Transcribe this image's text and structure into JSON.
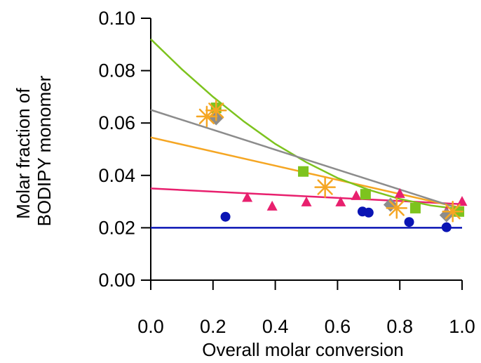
{
  "chart_data": {
    "type": "scatter",
    "title": "",
    "xlabel": "Overall molar conversion",
    "ylabel_lines": [
      "Molar fraction of",
      "BODIPY monomer"
    ],
    "xlim": [
      0.0,
      1.0
    ],
    "ylim": [
      0.0,
      0.1
    ],
    "x_ticks": [
      "0.0",
      "0.2",
      "0.4",
      "0.6",
      "0.8",
      "1.0"
    ],
    "y_ticks": [
      "0.00",
      "0.02",
      "0.04",
      "0.06",
      "0.08",
      "0.10"
    ],
    "grid": false,
    "legend": "none",
    "series": [
      {
        "color": "#0a14b4",
        "marker": "circle",
        "points": [
          [
            0.24,
            0.0242
          ],
          [
            0.68,
            0.0262
          ],
          [
            0.7,
            0.0258
          ],
          [
            0.83,
            0.0222
          ],
          [
            0.95,
            0.0202
          ]
        ],
        "fit": [
          [
            0.0,
            0.02
          ],
          [
            0.5,
            0.02
          ],
          [
            1.0,
            0.02
          ]
        ]
      },
      {
        "color": "#e8206e",
        "marker": "triangle",
        "points": [
          [
            0.31,
            0.0315
          ],
          [
            0.39,
            0.0282
          ],
          [
            0.5,
            0.0298
          ],
          [
            0.61,
            0.0298
          ],
          [
            0.66,
            0.0322
          ],
          [
            0.8,
            0.033
          ],
          [
            0.95,
            0.0262
          ],
          [
            1.0,
            0.03
          ]
        ],
        "fit": [
          [
            0.0,
            0.035
          ],
          [
            0.5,
            0.032
          ],
          [
            1.0,
            0.029
          ]
        ]
      },
      {
        "color": "#f5a623",
        "marker": "asterisk",
        "points": [
          [
            0.18,
            0.0625
          ],
          [
            0.21,
            0.0648
          ],
          [
            0.56,
            0.0355
          ],
          [
            0.79,
            0.0275
          ],
          [
            0.97,
            0.0262
          ]
        ],
        "fit": [
          [
            0.0,
            0.0545
          ],
          [
            0.5,
            0.041
          ],
          [
            1.0,
            0.0275
          ]
        ]
      },
      {
        "color": "#7dc31e",
        "marker": "square",
        "points": [
          [
            0.21,
            0.0658
          ],
          [
            0.49,
            0.0415
          ],
          [
            0.69,
            0.0328
          ],
          [
            0.85,
            0.0275
          ],
          [
            0.99,
            0.0262
          ]
        ],
        "fit": [
          [
            0.0,
            0.092
          ],
          [
            0.1,
            0.0805
          ],
          [
            0.2,
            0.07
          ],
          [
            0.3,
            0.0605
          ],
          [
            0.4,
            0.052
          ],
          [
            0.5,
            0.045
          ],
          [
            0.6,
            0.039
          ],
          [
            0.7,
            0.0345
          ],
          [
            0.8,
            0.031
          ],
          [
            0.9,
            0.0285
          ],
          [
            1.0,
            0.027
          ]
        ]
      },
      {
        "color": "#8c8c8c",
        "marker": "diamond",
        "points": [
          [
            0.21,
            0.0618
          ],
          [
            0.77,
            0.0288
          ],
          [
            0.95,
            0.0248
          ]
        ],
        "fit": [
          [
            0.0,
            0.065
          ],
          [
            0.5,
            0.046
          ],
          [
            1.0,
            0.027
          ]
        ]
      }
    ]
  }
}
